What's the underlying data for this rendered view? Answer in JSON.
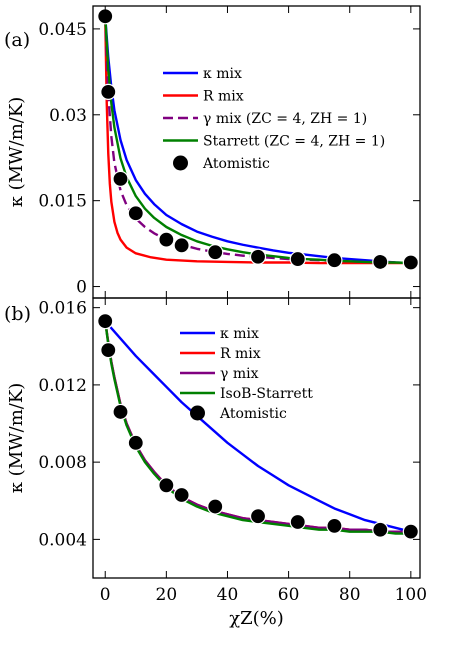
{
  "chart_data": [
    {
      "type": "line",
      "panel_label": "(a)",
      "xlabel": "χZ(%)",
      "ylabel": "κ (MW/m/K)",
      "xlim": [
        -4,
        103
      ],
      "ylim": [
        -0.002,
        0.049
      ],
      "xticks": [
        0,
        20,
        40,
        60,
        80,
        100
      ],
      "yticks": [
        0,
        0.015,
        0.03,
        0.045
      ],
      "ytick_labels": [
        "0",
        "0.015",
        "0.03",
        "0.045"
      ],
      "show_xtick_labels": false,
      "grid": false,
      "legend_position": "top-right",
      "series": [
        {
          "name": "κ mix",
          "color": "#0000ff",
          "x": [
            0,
            1,
            2,
            3,
            5,
            7,
            10,
            13,
            16,
            20,
            25,
            30,
            35,
            40,
            45,
            50,
            55,
            60,
            65,
            70,
            75,
            80,
            85,
            90,
            95,
            100
          ],
          "y": [
            0.0472,
            0.04,
            0.0348,
            0.0308,
            0.0256,
            0.0221,
            0.0186,
            0.0162,
            0.0144,
            0.0125,
            0.0109,
            0.0096,
            0.0087,
            0.0079,
            0.0073,
            0.0068,
            0.0063,
            0.0059,
            0.0056,
            0.0053,
            0.005,
            0.0048,
            0.0046,
            0.0044,
            0.0042,
            0.0041
          ]
        },
        {
          "name": "R mix",
          "color": "#ff0000",
          "x": [
            0,
            0.5,
            1,
            1.5,
            2,
            3,
            4,
            5,
            7,
            10,
            15,
            20,
            30,
            40,
            50,
            60,
            70,
            80,
            90,
            100
          ],
          "y": [
            0.0472,
            0.032,
            0.0232,
            0.018,
            0.0148,
            0.0113,
            0.0094,
            0.0082,
            0.0068,
            0.0058,
            0.0051,
            0.0047,
            0.0044,
            0.0043,
            0.0042,
            0.0042,
            0.0041,
            0.0041,
            0.0041,
            0.0041
          ]
        },
        {
          "name": "γ mix (ZC = 4, ZH = 1)",
          "color": "#800080",
          "dash": "10,5",
          "x": [
            0,
            1,
            2,
            3,
            5,
            7,
            10,
            13,
            16,
            20,
            25,
            30,
            35,
            40,
            45,
            50,
            55,
            60,
            65,
            70,
            75,
            80,
            85,
            90,
            95,
            100
          ],
          "y": [
            0.0472,
            0.0336,
            0.0262,
            0.0216,
            0.0168,
            0.0142,
            0.0119,
            0.0104,
            0.0093,
            0.0082,
            0.0073,
            0.0066,
            0.0061,
            0.0057,
            0.0054,
            0.0052,
            0.005,
            0.0048,
            0.0047,
            0.0046,
            0.0045,
            0.0044,
            0.0043,
            0.0043,
            0.0042,
            0.0041
          ]
        },
        {
          "name": "Starrett (ZC = 4, ZH = 1)",
          "color": "#008000",
          "x": [
            0,
            1,
            2,
            3,
            5,
            7,
            10,
            13,
            16,
            20,
            25,
            30,
            35,
            40,
            45,
            50,
            55,
            60,
            65,
            70,
            75,
            80,
            85,
            90,
            95,
            100
          ],
          "y": [
            0.0472,
            0.038,
            0.032,
            0.0278,
            0.0224,
            0.0191,
            0.0158,
            0.0136,
            0.012,
            0.0104,
            0.009,
            0.0079,
            0.0071,
            0.0065,
            0.006,
            0.0056,
            0.0053,
            0.005,
            0.0048,
            0.0047,
            0.0045,
            0.0044,
            0.0043,
            0.0042,
            0.0042,
            0.0041
          ]
        },
        {
          "name": "Atomistic",
          "color": "#000000",
          "marker": "circle",
          "x": [
            0,
            1,
            5,
            10,
            20,
            25,
            36,
            50,
            63,
            75,
            90,
            100
          ],
          "y": [
            0.0472,
            0.034,
            0.0188,
            0.0128,
            0.0082,
            0.0072,
            0.006,
            0.0052,
            0.0048,
            0.0046,
            0.0043,
            0.0042
          ]
        }
      ]
    },
    {
      "type": "line",
      "panel_label": "(b)",
      "xlabel": "χZ(%)",
      "ylabel": "κ (MW/m/K)",
      "xlim": [
        -4,
        103
      ],
      "ylim": [
        0.002,
        0.0165
      ],
      "xticks": [
        0,
        20,
        40,
        60,
        80,
        100
      ],
      "xtick_labels": [
        "0",
        "20",
        "40",
        "60",
        "80",
        "100"
      ],
      "yticks": [
        0.004,
        0.008,
        0.012,
        0.016
      ],
      "ytick_labels": [
        "0.004",
        "0.008",
        "0.012",
        "0.016"
      ],
      "show_xtick_labels": true,
      "grid": false,
      "legend_position": "top-right",
      "series": [
        {
          "name": "κ mix",
          "color": "#0000ff",
          "x": [
            0,
            5,
            10,
            15,
            20,
            25,
            30,
            35,
            40,
            45,
            50,
            55,
            60,
            65,
            70,
            75,
            80,
            85,
            90,
            95,
            100
          ],
          "y": [
            0.0153,
            0.0144,
            0.0135,
            0.0127,
            0.0119,
            0.0111,
            0.0104,
            0.0097,
            0.009,
            0.0084,
            0.0078,
            0.0073,
            0.0068,
            0.0064,
            0.006,
            0.0056,
            0.0053,
            0.005,
            0.0048,
            0.0046,
            0.0044
          ]
        },
        {
          "name": "R mix",
          "color": "#ff0000",
          "x": [
            0,
            1,
            2,
            3,
            5,
            7,
            10,
            13,
            16,
            20,
            25,
            30,
            35,
            40,
            45,
            50,
            55,
            60,
            65,
            70,
            75,
            80,
            85,
            90,
            95,
            100
          ],
          "y": [
            0.0153,
            0.0142,
            0.0132,
            0.0124,
            0.011,
            0.01,
            0.0089,
            0.0081,
            0.0075,
            0.0068,
            0.0062,
            0.0058,
            0.0055,
            0.0053,
            0.0051,
            0.005,
            0.0049,
            0.0048,
            0.0047,
            0.0046,
            0.0046,
            0.0045,
            0.0045,
            0.0044,
            0.0044,
            0.0044
          ]
        },
        {
          "name": "γ mix",
          "color": "#800080",
          "x": [
            0,
            1,
            2,
            3,
            5,
            7,
            10,
            13,
            16,
            20,
            25,
            30,
            35,
            40,
            45,
            50,
            55,
            60,
            65,
            70,
            75,
            80,
            85,
            90,
            95,
            100
          ],
          "y": [
            0.0153,
            0.0142,
            0.0132,
            0.0124,
            0.011,
            0.01,
            0.0089,
            0.0081,
            0.0075,
            0.0068,
            0.0062,
            0.0058,
            0.0055,
            0.0053,
            0.0051,
            0.005,
            0.0049,
            0.0048,
            0.0047,
            0.0046,
            0.0046,
            0.0045,
            0.0045,
            0.0044,
            0.0044,
            0.0044
          ]
        },
        {
          "name": "IsoB-Starrett",
          "color": "#008000",
          "x": [
            0,
            1,
            2,
            3,
            5,
            7,
            10,
            13,
            16,
            20,
            25,
            30,
            35,
            40,
            45,
            50,
            55,
            60,
            65,
            70,
            75,
            80,
            85,
            90,
            95,
            100
          ],
          "y": [
            0.0153,
            0.0141,
            0.0131,
            0.0123,
            0.0109,
            0.0099,
            0.0088,
            0.008,
            0.0074,
            0.0067,
            0.0061,
            0.0057,
            0.0054,
            0.0052,
            0.005,
            0.0049,
            0.0048,
            0.0047,
            0.0046,
            0.0045,
            0.0045,
            0.0044,
            0.0044,
            0.0044,
            0.0043,
            0.0043
          ]
        },
        {
          "name": "Atomistic",
          "color": "#000000",
          "marker": "circle",
          "x": [
            0,
            1,
            5,
            10,
            20,
            25,
            36,
            50,
            63,
            75,
            90,
            100
          ],
          "y": [
            0.0153,
            0.0138,
            0.0106,
            0.009,
            0.0068,
            0.0063,
            0.0057,
            0.0052,
            0.0049,
            0.0047,
            0.0045,
            0.0044
          ]
        }
      ]
    }
  ]
}
